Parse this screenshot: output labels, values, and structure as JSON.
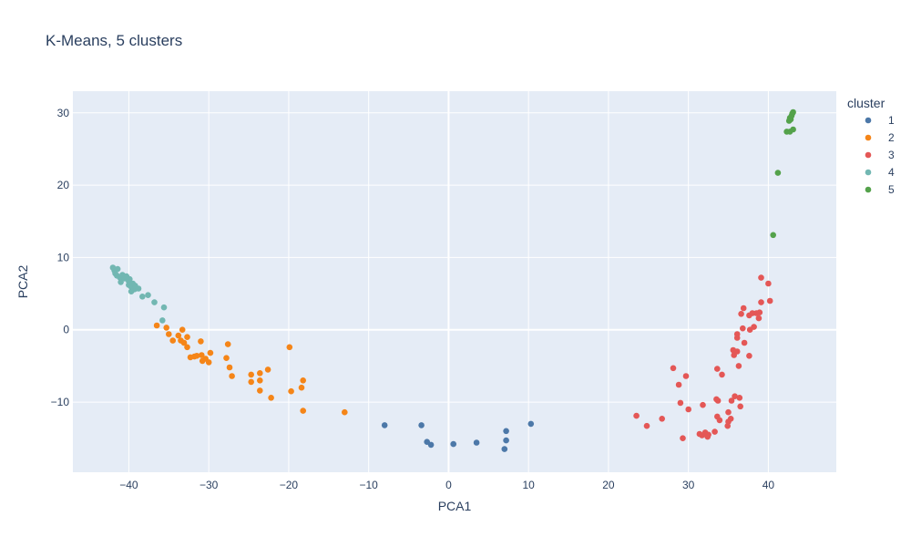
{
  "chart_data": {
    "type": "scatter",
    "title": "K-Means, 5 clusters",
    "xlabel": "PCA1",
    "ylabel": "PCA2",
    "xlim": [
      -47,
      48.5
    ],
    "ylim": [
      -19.7,
      33
    ],
    "xticks": [
      -40,
      -30,
      -20,
      -10,
      0,
      10,
      20,
      30,
      40
    ],
    "yticks": [
      -10,
      0,
      10,
      20,
      30
    ],
    "grid": true,
    "background": "#e5ecf6",
    "legend_title": "cluster",
    "legend_position": "right",
    "series": [
      {
        "name": "1",
        "color": "#4c78a8",
        "points": [
          [
            -8,
            -13.2
          ],
          [
            -3.4,
            -13.2
          ],
          [
            -2.7,
            -15.5
          ],
          [
            -2.2,
            -15.9
          ],
          [
            0.6,
            -15.8
          ],
          [
            3.5,
            -15.6
          ],
          [
            7,
            -16.5
          ],
          [
            7.2,
            -15.3
          ],
          [
            7.2,
            -14
          ],
          [
            10.3,
            -13
          ]
        ]
      },
      {
        "name": "2",
        "color": "#f58518",
        "points": [
          [
            -36.5,
            0.6
          ],
          [
            -35.3,
            0.3
          ],
          [
            -35,
            -0.6
          ],
          [
            -34.5,
            -1.5
          ],
          [
            -33.8,
            -0.8
          ],
          [
            -33.5,
            -1.5
          ],
          [
            -33.1,
            -1.8
          ],
          [
            -33.3,
            0
          ],
          [
            -32.7,
            -1
          ],
          [
            -32.7,
            -2.4
          ],
          [
            -32.3,
            -3.8
          ],
          [
            -31.8,
            -3.7
          ],
          [
            -31.5,
            -3.6
          ],
          [
            -31,
            -1.6
          ],
          [
            -30.9,
            -3.5
          ],
          [
            -30.8,
            -4.3
          ],
          [
            -30.4,
            -4
          ],
          [
            -30,
            -4.5
          ],
          [
            -29.8,
            -3.2
          ],
          [
            -27.6,
            -2
          ],
          [
            -27.8,
            -3.9
          ],
          [
            -27.4,
            -5.2
          ],
          [
            -27.1,
            -6.4
          ],
          [
            -24.7,
            -6.2
          ],
          [
            -24.7,
            -7.2
          ],
          [
            -23.6,
            -6
          ],
          [
            -23.6,
            -7
          ],
          [
            -23.6,
            -8.4
          ],
          [
            -22.6,
            -5.5
          ],
          [
            -22.2,
            -9.4
          ],
          [
            -19.9,
            -2.4
          ],
          [
            -19.7,
            -8.5
          ],
          [
            -18.4,
            -8
          ],
          [
            -18.2,
            -7
          ],
          [
            -18.2,
            -11.2
          ],
          [
            -13,
            -11.4
          ]
        ]
      },
      {
        "name": "3",
        "color": "#e45756",
        "points": [
          [
            23.5,
            -11.9
          ],
          [
            24.8,
            -13.3
          ],
          [
            26.7,
            -12.3
          ],
          [
            28.1,
            -5.3
          ],
          [
            28.8,
            -7.6
          ],
          [
            29,
            -10.1
          ],
          [
            29.3,
            -15
          ],
          [
            29.7,
            -6.4
          ],
          [
            30,
            -11
          ],
          [
            31.4,
            -14.4
          ],
          [
            31.7,
            -14.6
          ],
          [
            31.8,
            -10.4
          ],
          [
            32.1,
            -14.2
          ],
          [
            32.4,
            -14.8
          ],
          [
            32.5,
            -14.5
          ],
          [
            33.3,
            -14.1
          ],
          [
            33.5,
            -9.6
          ],
          [
            33.6,
            -12
          ],
          [
            33.6,
            -5.4
          ],
          [
            33.7,
            -9.8
          ],
          [
            33.9,
            -12.5
          ],
          [
            34.2,
            -6.2
          ],
          [
            34.9,
            -13.3
          ],
          [
            35,
            -12.7
          ],
          [
            35,
            -11.4
          ],
          [
            35.3,
            -12.3
          ],
          [
            35.4,
            -9.8
          ],
          [
            35.6,
            -2.8
          ],
          [
            35.7,
            -3.5
          ],
          [
            35.8,
            -9.2
          ],
          [
            36.1,
            -1.1
          ],
          [
            36.1,
            -0.6
          ],
          [
            36.1,
            -3
          ],
          [
            36.3,
            -5
          ],
          [
            36.4,
            -9.4
          ],
          [
            36.5,
            -10.6
          ],
          [
            36.6,
            2.2
          ],
          [
            36.8,
            0.2
          ],
          [
            36.9,
            3
          ],
          [
            37,
            -1.8
          ],
          [
            37.6,
            2
          ],
          [
            37.6,
            -3.6
          ],
          [
            37.7,
            0
          ],
          [
            38,
            2.3
          ],
          [
            38.2,
            0.4
          ],
          [
            38.5,
            2.3
          ],
          [
            38.8,
            1.6
          ],
          [
            38.9,
            2.4
          ],
          [
            39.1,
            7.2
          ],
          [
            39.1,
            3.8
          ],
          [
            40,
            6.4
          ],
          [
            40.2,
            4
          ]
        ]
      },
      {
        "name": "4",
        "color": "#72b7b2",
        "points": [
          [
            -42,
            8.6
          ],
          [
            -41.8,
            8.2
          ],
          [
            -41.7,
            7.8
          ],
          [
            -41.5,
            7.5
          ],
          [
            -41.4,
            8.4
          ],
          [
            -41.1,
            7.2
          ],
          [
            -41,
            6.6
          ],
          [
            -40.8,
            7.6
          ],
          [
            -40.5,
            7.1
          ],
          [
            -40.3,
            7.4
          ],
          [
            -40,
            6.7
          ],
          [
            -40,
            6.2
          ],
          [
            -39.9,
            7
          ],
          [
            -39.7,
            5.9
          ],
          [
            -39.7,
            5.3
          ],
          [
            -39.5,
            6.4
          ],
          [
            -39.3,
            5.6
          ],
          [
            -39.2,
            6.1
          ],
          [
            -38.8,
            5.7
          ],
          [
            -38.3,
            4.6
          ],
          [
            -37.6,
            4.8
          ],
          [
            -36.8,
            3.8
          ],
          [
            -35.6,
            3.1
          ],
          [
            -35.8,
            1.3
          ]
        ]
      },
      {
        "name": "5",
        "color": "#54a24b",
        "points": [
          [
            40.6,
            13.1
          ],
          [
            41.2,
            21.7
          ],
          [
            42.3,
            27.4
          ],
          [
            42.6,
            28.9
          ],
          [
            42.7,
            29.3
          ],
          [
            42.7,
            27.4
          ],
          [
            42.8,
            29.1
          ],
          [
            42.9,
            29.6
          ],
          [
            43,
            29.9
          ],
          [
            43.1,
            30.1
          ],
          [
            43.1,
            27.7
          ]
        ]
      }
    ]
  }
}
